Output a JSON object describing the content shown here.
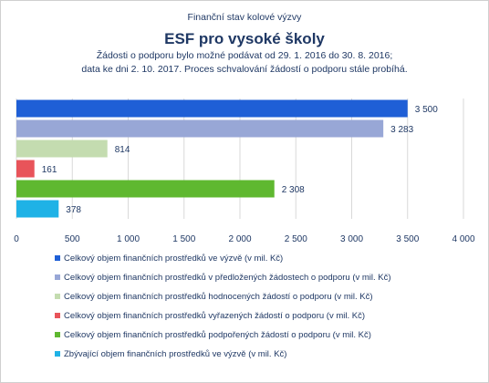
{
  "header": {
    "supertitle": "Finanční stav kolové výzvy",
    "title": "ESF pro vysoké školy",
    "subtitle_line1": "Žádosti o podporu bylo možné  podávat od 29. 1. 2016 do 30. 8. 2016;",
    "subtitle_line2": "data ke dni 2. 10. 2017. Proces schvalování žádostí o podporu stále probíhá."
  },
  "chart_data": {
    "type": "bar",
    "orientation": "horizontal",
    "title": "ESF pro vysoké školy",
    "xlim": [
      0,
      4000
    ],
    "x_ticks": [
      0,
      500,
      1000,
      1500,
      2000,
      2500,
      3000,
      3500,
      4000
    ],
    "x_tick_labels": [
      "0",
      "500",
      "1 000",
      "1 500",
      "2 000",
      "2 500",
      "3 000",
      "3 500",
      "4 000"
    ],
    "grid": true,
    "legend_position": "bottom",
    "series": [
      {
        "name": "Celkový objem finančních prostředků ve výzvě (v mil. Kč)",
        "value": 3500,
        "label": "3 500",
        "color": "#1f5fd6"
      },
      {
        "name": "Celkový objem finančních prostředků v předložených žádostech o podporu (v mil. Kč)",
        "value": 3283,
        "label": "3 283",
        "color": "#98a7d6"
      },
      {
        "name": "Celkový objem finančních prostředků hodnocených žádostí o podporu (v mil. Kč)",
        "value": 814,
        "label": "814",
        "color": "#c4dcb0"
      },
      {
        "name": "Celkový objem finančních prostředků vyřazených žádostí o podporu (v mil. Kč)",
        "value": 161,
        "label": "161",
        "color": "#e8545a"
      },
      {
        "name": "Celkový objem finančních prostředků podpořených žádostí o podporu (v mil. Kč)",
        "value": 2308,
        "label": "2 308",
        "color": "#5fb830"
      },
      {
        "name": "Zbývající objem finančních prostředků ve výzvě (v mil. Kč)",
        "value": 378,
        "label": "378",
        "color": "#1fb2e6"
      }
    ]
  }
}
